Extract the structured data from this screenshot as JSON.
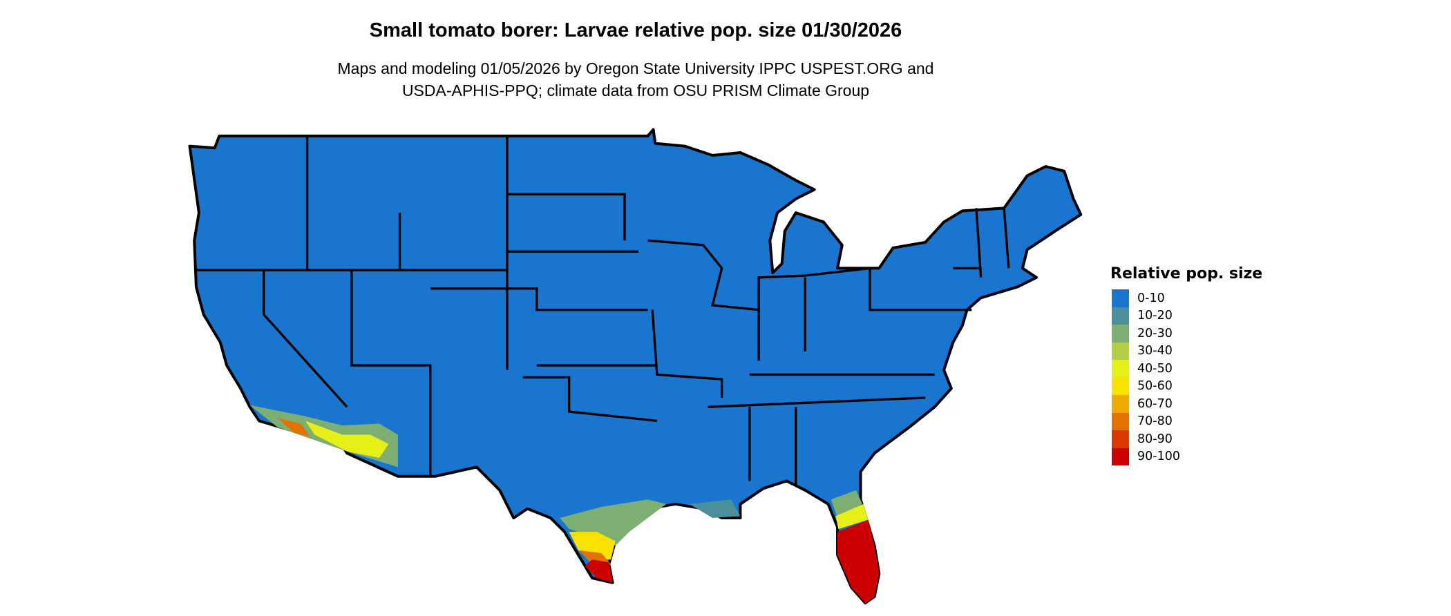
{
  "title": "Small tomato borer: Larvae relative pop. size 01/30/2026",
  "subtitle_line1": "Maps and modeling 01/05/2026 by Oregon State University IPPC USPEST.ORG and",
  "subtitle_line2": "USDA-APHIS-PPQ; climate data from OSU PRISM Climate Group",
  "map": {
    "region": "Contiguous United States",
    "base_color": "#1a75cf",
    "border_color": "#000000"
  },
  "legend": {
    "title": "Relative pop. size",
    "items": [
      {
        "label": "0-10",
        "color": "#1a75cf"
      },
      {
        "label": "10-20",
        "color": "#4a8f9a"
      },
      {
        "label": "20-30",
        "color": "#7daf73"
      },
      {
        "label": "30-40",
        "color": "#b3cf45"
      },
      {
        "label": "40-50",
        "color": "#e6ef18"
      },
      {
        "label": "50-60",
        "color": "#f9e100"
      },
      {
        "label": "60-70",
        "color": "#efab00"
      },
      {
        "label": "70-80",
        "color": "#e47200"
      },
      {
        "label": "80-90",
        "color": "#d93800"
      },
      {
        "label": "90-100",
        "color": "#cc0000"
      }
    ]
  }
}
